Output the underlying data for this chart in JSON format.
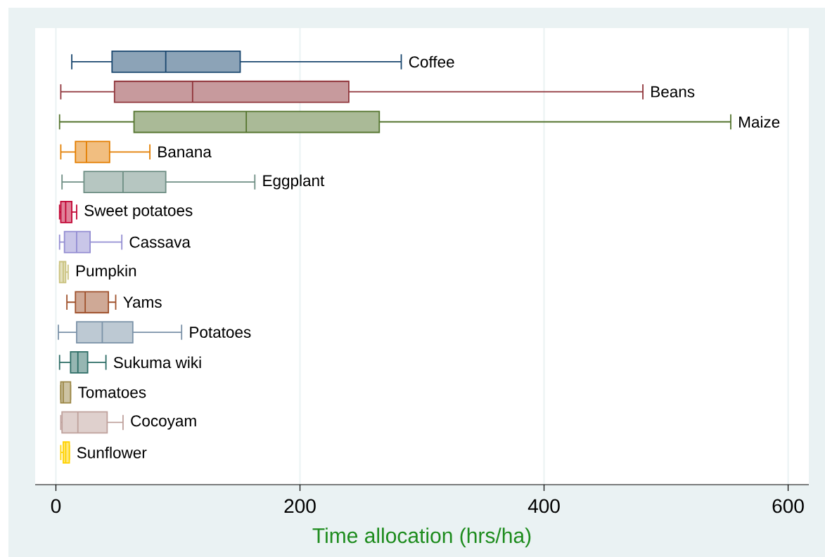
{
  "chart_data": {
    "type": "box",
    "orientation": "horizontal",
    "xlabel": "Time allocation (hrs/ha)",
    "categories": [
      "Coffee",
      "Beans",
      "Maize",
      "Banana",
      "Eggplant",
      "Sweet potatoes",
      "Cassava",
      "Pumpkin",
      "Yams",
      "Potatoes",
      "Sukuma wiki",
      "Tomatoes",
      "Cocoyam",
      "Sunflower"
    ],
    "boxes": [
      {
        "low": 13,
        "q1": 46,
        "median": 90,
        "q3": 151,
        "high": 283
      },
      {
        "low": 4,
        "q1": 48,
        "median": 112,
        "q3": 240,
        "high": 481
      },
      {
        "low": 3,
        "q1": 64,
        "median": 156,
        "q3": 265,
        "high": 553
      },
      {
        "low": 4,
        "q1": 16,
        "median": 25,
        "q3": 44,
        "high": 77
      },
      {
        "low": 5,
        "q1": 23,
        "median": 55,
        "q3": 90,
        "high": 163
      },
      {
        "low": 3,
        "q1": 4,
        "median": 8,
        "q3": 13,
        "high": 17
      },
      {
        "low": 3,
        "q1": 7,
        "median": 17,
        "q3": 28,
        "high": 54
      },
      {
        "low": 3,
        "q1": 3,
        "median": 6,
        "q3": 8,
        "high": 10
      },
      {
        "low": 9,
        "q1": 16,
        "median": 24,
        "q3": 43,
        "high": 49
      },
      {
        "low": 2,
        "q1": 17,
        "median": 38,
        "q3": 63,
        "high": 103
      },
      {
        "low": 3,
        "q1": 12,
        "median": 18,
        "q3": 26,
        "high": 41
      },
      {
        "low": 4,
        "q1": 4,
        "median": 6,
        "q3": 12,
        "high": 12
      },
      {
        "low": 4,
        "q1": 5,
        "median": 18,
        "q3": 42,
        "high": 55
      },
      {
        "low": 4,
        "q1": 6,
        "median": 8,
        "q3": 11,
        "high": 11
      }
    ],
    "colors": [
      "#1a476f",
      "#90353b",
      "#55752f",
      "#e37e00",
      "#6e8e84",
      "#c10534",
      "#938dd2",
      "#cac27e",
      "#a0522d",
      "#7b92a8",
      "#2d6d66",
      "#9c8847",
      "#bfa19c",
      "#ffd200"
    ],
    "xlim": [
      -17,
      617
    ],
    "xticks": [
      0,
      200,
      400,
      600
    ],
    "grid": "x"
  }
}
